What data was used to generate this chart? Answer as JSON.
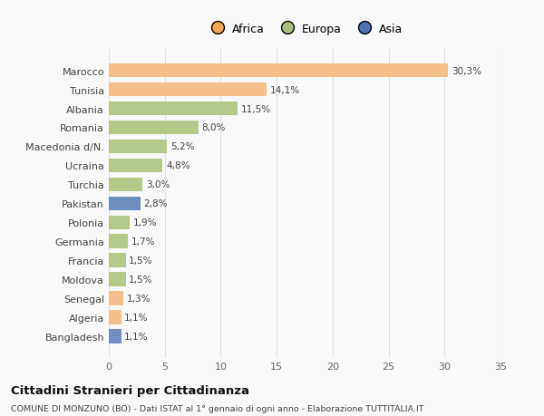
{
  "countries": [
    "Marocco",
    "Tunisia",
    "Albania",
    "Romania",
    "Macedonia d/N.",
    "Ucraina",
    "Turchia",
    "Pakistan",
    "Polonia",
    "Germania",
    "Francia",
    "Moldova",
    "Senegal",
    "Algeria",
    "Bangladesh"
  ],
  "values": [
    30.3,
    14.1,
    11.5,
    8.0,
    5.2,
    4.8,
    3.0,
    2.8,
    1.9,
    1.7,
    1.5,
    1.5,
    1.3,
    1.1,
    1.1
  ],
  "labels": [
    "30,3%",
    "14,1%",
    "11,5%",
    "8,0%",
    "5,2%",
    "4,8%",
    "3,0%",
    "2,8%",
    "1,9%",
    "1,7%",
    "1,5%",
    "1,5%",
    "1,3%",
    "1,1%",
    "1,1%"
  ],
  "continents": [
    "Africa",
    "Africa",
    "Europa",
    "Europa",
    "Europa",
    "Europa",
    "Europa",
    "Asia",
    "Europa",
    "Europa",
    "Europa",
    "Europa",
    "Africa",
    "Africa",
    "Asia"
  ],
  "bar_colors": {
    "Africa": "#F5C08C",
    "Europa": "#B5C98A",
    "Asia": "#6E8FBF"
  },
  "legend_colors": {
    "Africa": "#F5A555",
    "Europa": "#A8C07A",
    "Asia": "#4F72B0"
  },
  "title": "Cittadini Stranieri per Cittadinanza",
  "subtitle": "COMUNE DI MONZUNO (BO) - Dati ISTAT al 1° gennaio di ogni anno - Elaborazione TUTTITALIA.IT",
  "xlim": [
    0,
    35
  ],
  "xticks": [
    0,
    5,
    10,
    15,
    20,
    25,
    30,
    35
  ],
  "background_color": "#F9F9F9",
  "grid_color": "#E0E0E0"
}
